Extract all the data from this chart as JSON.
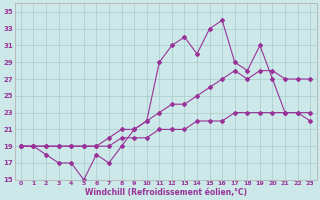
{
  "xlabel": "Windchill (Refroidissement éolien,°C)",
  "background_color": "#cce8e8",
  "grid_color": "#aacccc",
  "line_color": "#993399",
  "xlim": [
    -0.5,
    23.5
  ],
  "ylim": [
    15,
    36
  ],
  "yticks": [
    15,
    17,
    19,
    21,
    23,
    25,
    27,
    29,
    31,
    33,
    35
  ],
  "xticks": [
    0,
    1,
    2,
    3,
    4,
    5,
    6,
    7,
    8,
    9,
    10,
    11,
    12,
    13,
    14,
    15,
    16,
    17,
    18,
    19,
    20,
    21,
    22,
    23
  ],
  "line1_x": [
    0,
    1,
    2,
    3,
    4,
    5,
    6,
    7,
    8,
    9,
    10,
    11,
    12,
    13,
    14,
    15,
    16,
    17,
    18,
    19,
    20,
    21,
    22,
    23
  ],
  "line1_y": [
    19,
    19,
    18,
    17,
    17,
    15,
    18,
    17,
    19,
    21,
    22,
    29,
    31,
    32,
    30,
    33,
    34,
    29,
    28,
    31,
    27,
    23,
    23,
    22
  ],
  "line2_x": [
    0,
    1,
    2,
    3,
    4,
    5,
    6,
    7,
    8,
    9,
    10,
    11,
    12,
    13,
    14,
    15,
    16,
    17,
    18,
    19,
    20,
    21,
    22,
    23
  ],
  "line2_y": [
    19,
    19,
    19,
    19,
    19,
    19,
    19,
    20,
    21,
    21,
    22,
    23,
    24,
    24,
    25,
    26,
    27,
    28,
    27,
    28,
    28,
    27,
    27,
    27
  ],
  "line3_x": [
    0,
    1,
    2,
    3,
    4,
    5,
    6,
    7,
    8,
    9,
    10,
    11,
    12,
    13,
    14,
    15,
    16,
    17,
    18,
    19,
    20,
    21,
    22,
    23
  ],
  "line3_y": [
    19,
    19,
    19,
    19,
    19,
    19,
    19,
    19,
    20,
    20,
    20,
    21,
    21,
    21,
    22,
    22,
    22,
    23,
    23,
    23,
    23,
    23,
    23,
    23
  ]
}
